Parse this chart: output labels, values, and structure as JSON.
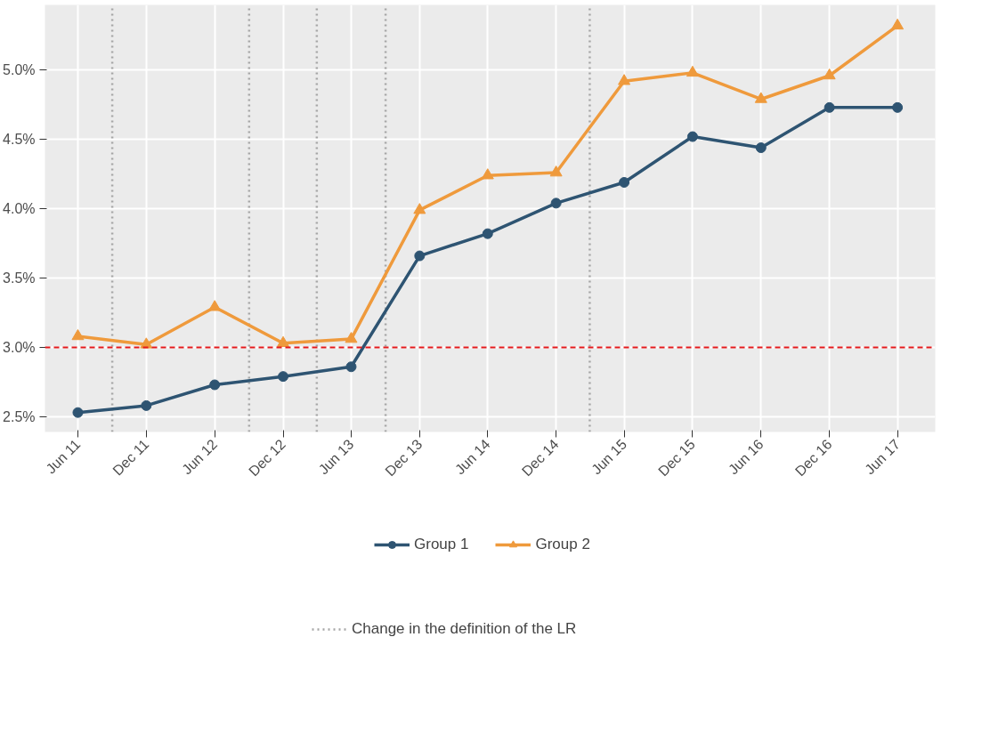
{
  "chart_data": {
    "type": "line",
    "x": [
      "2011-06",
      "2011-12",
      "2012-06",
      "2012-12",
      "2013-06",
      "2013-12",
      "2014-06",
      "2014-12",
      "2015-06",
      "2015-12",
      "2016-06",
      "2016-12",
      "2017-06"
    ],
    "series": [
      {
        "name": "Group 1",
        "color": "#2e5472",
        "marker": "circle",
        "values": [
          2.53,
          2.58,
          2.73,
          2.79,
          2.86,
          3.66,
          3.82,
          4.04,
          4.19,
          4.52,
          4.44,
          4.73,
          4.73
        ]
      },
      {
        "name": "Group 2",
        "color": "#ef9a3c",
        "marker": "triangle",
        "values": [
          3.08,
          3.02,
          3.29,
          3.03,
          3.06,
          3.99,
          4.24,
          4.26,
          4.92,
          4.98,
          4.79,
          4.96,
          5.32
        ]
      }
    ],
    "xlim": [
      "2011-03-05",
      "2017-09-10"
    ],
    "xticks": [
      {
        "value": "2011-06",
        "label": "Jun 11"
      },
      {
        "value": "2011-12",
        "label": "Dec 11"
      },
      {
        "value": "2012-06",
        "label": "Jun 12"
      },
      {
        "value": "2012-12",
        "label": "Dec 12"
      },
      {
        "value": "2013-06",
        "label": "Jun 13"
      },
      {
        "value": "2013-12",
        "label": "Dec 13"
      },
      {
        "value": "2014-06",
        "label": "Jun 14"
      },
      {
        "value": "2014-12",
        "label": "Dec 14"
      },
      {
        "value": "2015-06",
        "label": "Jun 15"
      },
      {
        "value": "2015-12",
        "label": "Dec 15"
      },
      {
        "value": "2016-06",
        "label": "Jun 16"
      },
      {
        "value": "2016-12",
        "label": "Dec 16"
      },
      {
        "value": "2017-06",
        "label": "Jun 17"
      }
    ],
    "ylim": [
      2.39,
      5.47
    ],
    "yticks": [
      {
        "value": 2.5,
        "label": "2.5%"
      },
      {
        "value": 3.0,
        "label": "3.0%"
      },
      {
        "value": 3.5,
        "label": "3.5%"
      },
      {
        "value": 4.0,
        "label": "4.0%"
      },
      {
        "value": 4.5,
        "label": "4.5%"
      },
      {
        "value": 5.0,
        "label": "5.0%"
      }
    ],
    "ref_lines": [
      {
        "axis": "y",
        "value": 3.0,
        "color": "#e31a1c",
        "line_style": "dashed"
      },
      {
        "axis": "x",
        "value": "2011-09",
        "color": "#a6a6a6",
        "line_style": "dotted",
        "label": "Change in the definition of the LR"
      },
      {
        "axis": "x",
        "value": "2012-09",
        "color": "#a6a6a6",
        "line_style": "dotted"
      },
      {
        "axis": "x",
        "value": "2013-03",
        "color": "#a6a6a6",
        "line_style": "dotted"
      },
      {
        "axis": "x",
        "value": "2013-09",
        "color": "#a6a6a6",
        "line_style": "dotted"
      },
      {
        "axis": "x",
        "value": "2015-03",
        "color": "#a6a6a6",
        "line_style": "dotted"
      }
    ],
    "grid": true,
    "legend": "bottom"
  }
}
